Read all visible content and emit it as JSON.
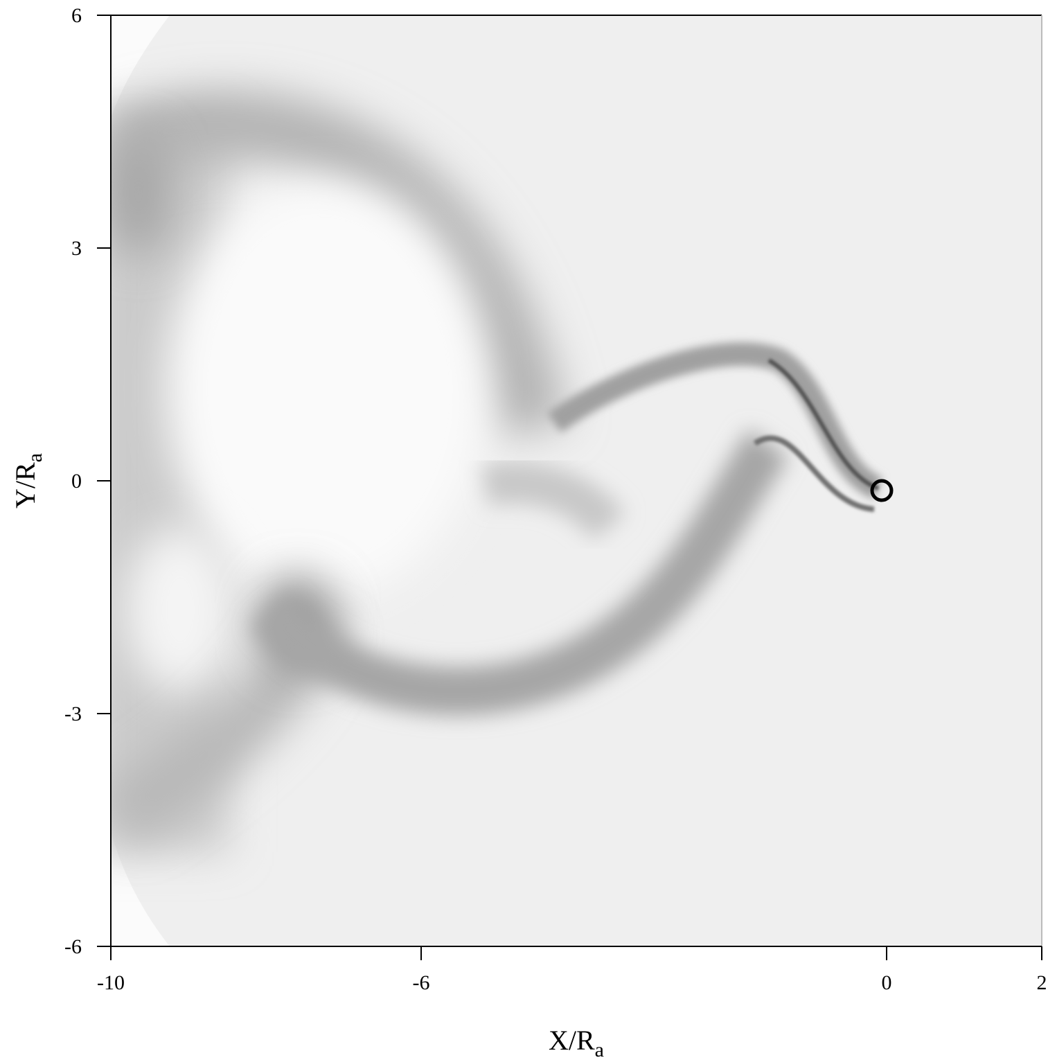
{
  "chart_data": {
    "type": "image",
    "xlabel": [
      "X/R",
      "a"
    ],
    "ylabel": [
      "Y/R",
      "a"
    ],
    "xlim": [
      -10,
      2
    ],
    "ylim": [
      -6,
      6
    ],
    "xticks": [
      -10,
      -6,
      0,
      2
    ],
    "yticks": [
      -6,
      -3,
      0,
      3,
      6
    ]
  }
}
